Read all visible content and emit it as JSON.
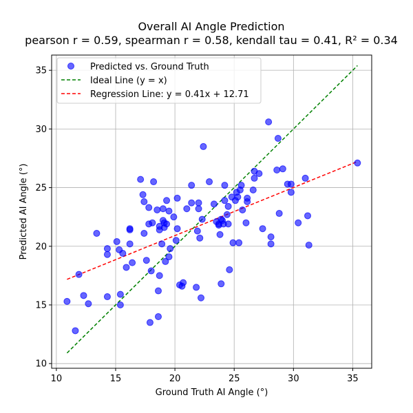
{
  "chart_data": {
    "type": "scatter",
    "title": "Overall AI Angle Prediction",
    "subtitle": "pearson r = 0.59, spearman r = 0.58, kendall tau = 0.41, R² = 0.34",
    "xlabel": "Ground Truth AI Angle (°)",
    "ylabel": "Predicted AI Angle (°)",
    "xlim": [
      9.6,
      36.6
    ],
    "ylim": [
      9.6,
      36.3
    ],
    "xticks": [
      10,
      15,
      20,
      25,
      30,
      35
    ],
    "yticks": [
      10,
      15,
      20,
      25,
      30,
      35
    ],
    "grid": true,
    "legend_position": "upper-left",
    "colors": {
      "points": "#0000ff",
      "ideal": "#008000",
      "regression": "#ff0000"
    },
    "series": [
      {
        "name": "Predicted vs. Ground Truth",
        "kind": "scatter",
        "points": [
          [
            10.9,
            15.3
          ],
          [
            11.6,
            12.8
          ],
          [
            11.9,
            17.6
          ],
          [
            12.3,
            15.8
          ],
          [
            12.7,
            15.1
          ],
          [
            13.4,
            21.1
          ],
          [
            14.3,
            19.3
          ],
          [
            14.3,
            19.8
          ],
          [
            14.3,
            15.7
          ],
          [
            15.1,
            20.4
          ],
          [
            15.3,
            19.7
          ],
          [
            15.4,
            15.0
          ],
          [
            15.4,
            15.9
          ],
          [
            15.6,
            19.4
          ],
          [
            15.9,
            18.2
          ],
          [
            16.2,
            20.2
          ],
          [
            16.2,
            21.5
          ],
          [
            16.2,
            21.4
          ],
          [
            16.4,
            18.6
          ],
          [
            17.1,
            25.7
          ],
          [
            17.3,
            24.4
          ],
          [
            17.4,
            21.1
          ],
          [
            17.4,
            23.8
          ],
          [
            17.6,
            18.8
          ],
          [
            17.8,
            21.9
          ],
          [
            17.8,
            23.3
          ],
          [
            17.9,
            13.5
          ],
          [
            18.0,
            17.9
          ],
          [
            18.1,
            22.0
          ],
          [
            18.2,
            25.5
          ],
          [
            18.5,
            23.1
          ],
          [
            18.6,
            16.2
          ],
          [
            18.6,
            14.0
          ],
          [
            18.7,
            21.7
          ],
          [
            18.7,
            21.4
          ],
          [
            18.7,
            17.5
          ],
          [
            18.9,
            20.2
          ],
          [
            19.0,
            22.2
          ],
          [
            19.0,
            23.2
          ],
          [
            19.1,
            21.6
          ],
          [
            19.1,
            22.0
          ],
          [
            19.2,
            18.7
          ],
          [
            19.3,
            23.9
          ],
          [
            19.3,
            21.9
          ],
          [
            19.5,
            23.0
          ],
          [
            19.5,
            19.1
          ],
          [
            19.6,
            19.8
          ],
          [
            19.9,
            22.5
          ],
          [
            20.1,
            20.5
          ],
          [
            20.2,
            21.5
          ],
          [
            20.2,
            24.1
          ],
          [
            20.4,
            16.7
          ],
          [
            20.6,
            16.6
          ],
          [
            20.7,
            16.9
          ],
          [
            21.0,
            23.2
          ],
          [
            21.4,
            23.7
          ],
          [
            21.4,
            25.2
          ],
          [
            21.8,
            16.5
          ],
          [
            21.9,
            21.3
          ],
          [
            22.0,
            23.2
          ],
          [
            22.0,
            23.7
          ],
          [
            22.1,
            20.7
          ],
          [
            22.2,
            15.6
          ],
          [
            22.3,
            22.3
          ],
          [
            22.4,
            28.5
          ],
          [
            22.9,
            25.5
          ],
          [
            23.3,
            23.6
          ],
          [
            23.5,
            22.1
          ],
          [
            23.7,
            21.9
          ],
          [
            23.7,
            21.8
          ],
          [
            23.8,
            21.0
          ],
          [
            23.9,
            22.3
          ],
          [
            23.9,
            16.8
          ],
          [
            24.0,
            22.2
          ],
          [
            24.1,
            21.9
          ],
          [
            24.2,
            25.2
          ],
          [
            24.2,
            23.9
          ],
          [
            24.4,
            22.7
          ],
          [
            24.5,
            23.4
          ],
          [
            24.5,
            21.9
          ],
          [
            24.6,
            18.0
          ],
          [
            24.8,
            24.2
          ],
          [
            24.9,
            20.3
          ],
          [
            25.1,
            23.9
          ],
          [
            25.2,
            24.6
          ],
          [
            25.3,
            24.2
          ],
          [
            25.4,
            20.3
          ],
          [
            25.5,
            24.8
          ],
          [
            25.6,
            25.2
          ],
          [
            25.7,
            23.1
          ],
          [
            26.0,
            22.0
          ],
          [
            26.1,
            24.1
          ],
          [
            26.1,
            23.8
          ],
          [
            26.6,
            24.8
          ],
          [
            26.7,
            26.4
          ],
          [
            26.7,
            25.8
          ],
          [
            27.1,
            26.2
          ],
          [
            27.4,
            21.5
          ],
          [
            27.9,
            30.6
          ],
          [
            28.1,
            20.2
          ],
          [
            28.1,
            20.8
          ],
          [
            28.6,
            26.5
          ],
          [
            28.7,
            29.2
          ],
          [
            28.8,
            22.8
          ],
          [
            29.1,
            26.6
          ],
          [
            29.5,
            25.3
          ],
          [
            29.8,
            24.6
          ],
          [
            29.8,
            25.3
          ],
          [
            30.4,
            22.0
          ],
          [
            31.0,
            25.8
          ],
          [
            31.2,
            22.6
          ],
          [
            31.3,
            20.1
          ],
          [
            35.4,
            27.1
          ]
        ]
      },
      {
        "name": "Ideal Line (y = x)",
        "kind": "line",
        "style": "dashed",
        "points": [
          [
            10.9,
            10.9
          ],
          [
            35.4,
            35.4
          ]
        ]
      },
      {
        "name": "Regression Line: y = 0.41x + 12.71",
        "kind": "line",
        "style": "dashed",
        "slope": 0.41,
        "intercept": 12.71,
        "x_range": [
          10.9,
          35.4
        ]
      }
    ]
  }
}
